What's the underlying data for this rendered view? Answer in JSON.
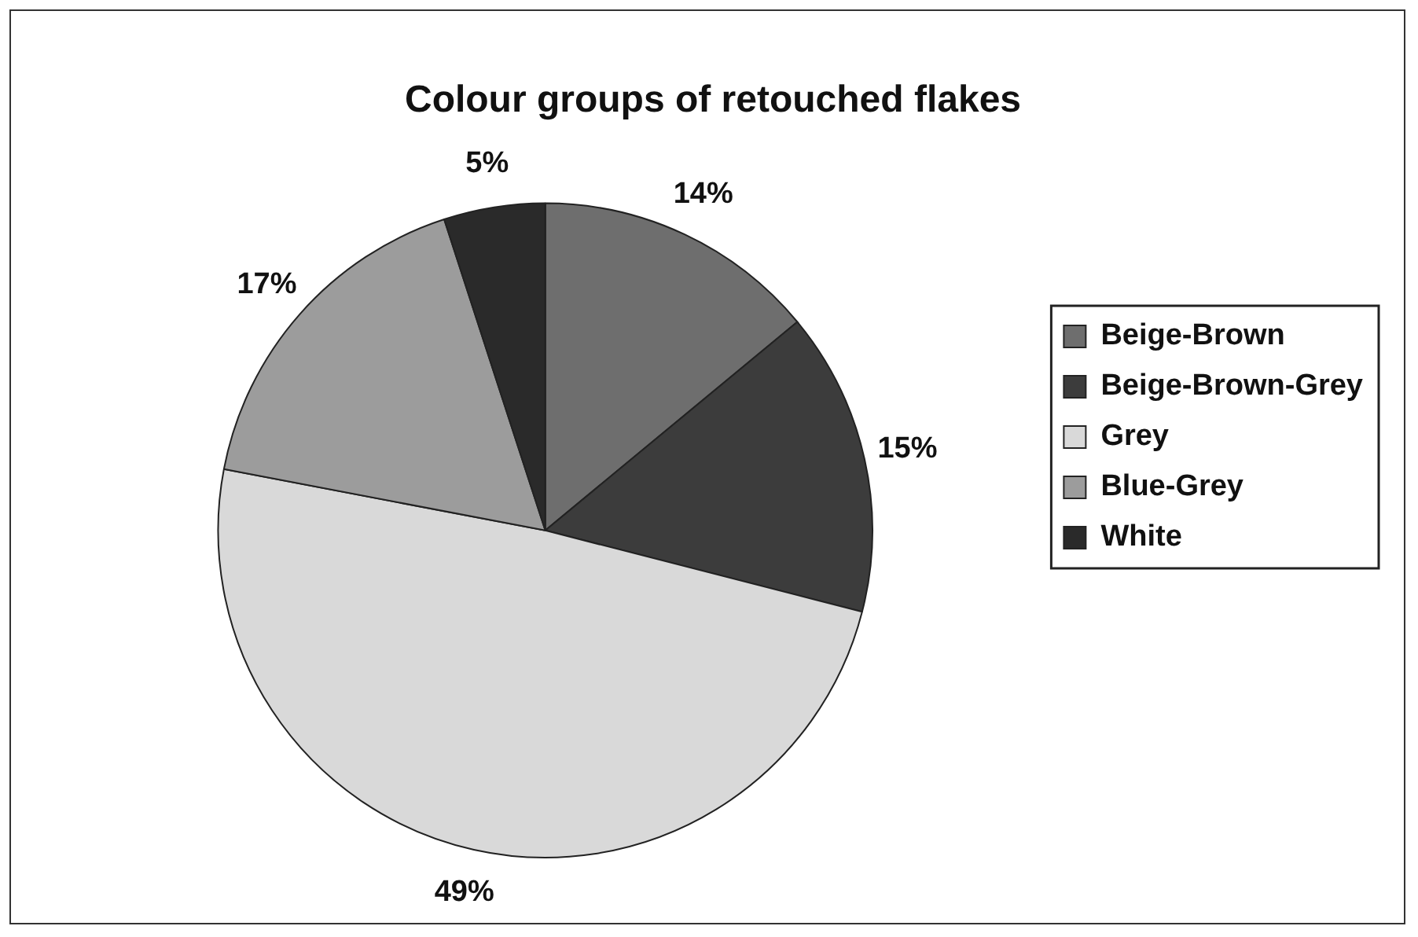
{
  "chart_data": {
    "type": "pie",
    "title": "Colour groups of retouched flakes",
    "categories": [
      "Beige-Brown",
      "Beige-Brown-Grey",
      "Grey",
      "Blue-Grey",
      "White"
    ],
    "values": [
      14,
      15,
      49,
      17,
      5
    ],
    "value_labels": [
      "14%",
      "15%",
      "49%",
      "17%",
      "5%"
    ],
    "colors": [
      "#6e6e6e",
      "#3c3c3c",
      "#d9d9d9",
      "#9c9c9c",
      "#2a2a2a"
    ],
    "legend": "right"
  }
}
